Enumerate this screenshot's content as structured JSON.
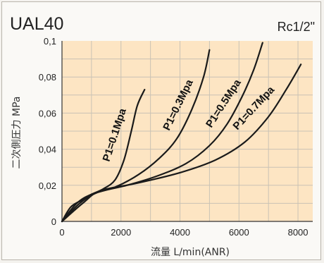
{
  "chart_data": {
    "type": "line",
    "title": "UAL40",
    "subtitle": "Rc1/2\"",
    "xlabel": "流量 L/min(ANR)",
    "ylabel": "二次側圧力 MPa",
    "xlim": [
      0,
      8500
    ],
    "ylim": [
      0,
      0.1
    ],
    "x_ticks": [
      "0",
      "2000",
      "4000",
      "6000",
      "8000"
    ],
    "y_ticks": [
      "0",
      "0,02",
      "0,04",
      "0,06",
      "0,08",
      "0,1"
    ],
    "grid": true,
    "colors": {
      "plot_bg": "#fde5c3",
      "grid": "#c9c2b5",
      "line": "#1a1a1a"
    },
    "series": [
      {
        "name": "P1=0.1Mpa",
        "points": [
          [
            0,
            0
          ],
          [
            300,
            0.008
          ],
          [
            700,
            0.012
          ],
          [
            1000,
            0.015
          ],
          [
            1400,
            0.018
          ],
          [
            1800,
            0.023
          ],
          [
            2100,
            0.034
          ],
          [
            2350,
            0.05
          ],
          [
            2550,
            0.064
          ],
          [
            2800,
            0.073
          ]
        ]
      },
      {
        "name": "P1=0.3Mpa",
        "points": [
          [
            0,
            0
          ],
          [
            500,
            0.01
          ],
          [
            1000,
            0.015
          ],
          [
            1800,
            0.019
          ],
          [
            2600,
            0.026
          ],
          [
            3300,
            0.035
          ],
          [
            3900,
            0.046
          ],
          [
            4400,
            0.062
          ],
          [
            4800,
            0.08
          ],
          [
            5000,
            0.095
          ]
        ]
      },
      {
        "name": "P1=0.5Mpa",
        "points": [
          [
            0,
            0
          ],
          [
            600,
            0.01
          ],
          [
            1200,
            0.016
          ],
          [
            2200,
            0.02
          ],
          [
            3200,
            0.025
          ],
          [
            4200,
            0.032
          ],
          [
            5000,
            0.042
          ],
          [
            5600,
            0.054
          ],
          [
            6100,
            0.069
          ],
          [
            6500,
            0.084
          ],
          [
            6800,
            0.099
          ]
        ]
      },
      {
        "name": "P1=0.7Mpa",
        "points": [
          [
            0,
            0
          ],
          [
            700,
            0.01
          ],
          [
            1300,
            0.017
          ],
          [
            2500,
            0.021
          ],
          [
            4000,
            0.027
          ],
          [
            5200,
            0.034
          ],
          [
            6200,
            0.044
          ],
          [
            7000,
            0.058
          ],
          [
            7600,
            0.073
          ],
          [
            8100,
            0.087
          ]
        ]
      }
    ]
  }
}
